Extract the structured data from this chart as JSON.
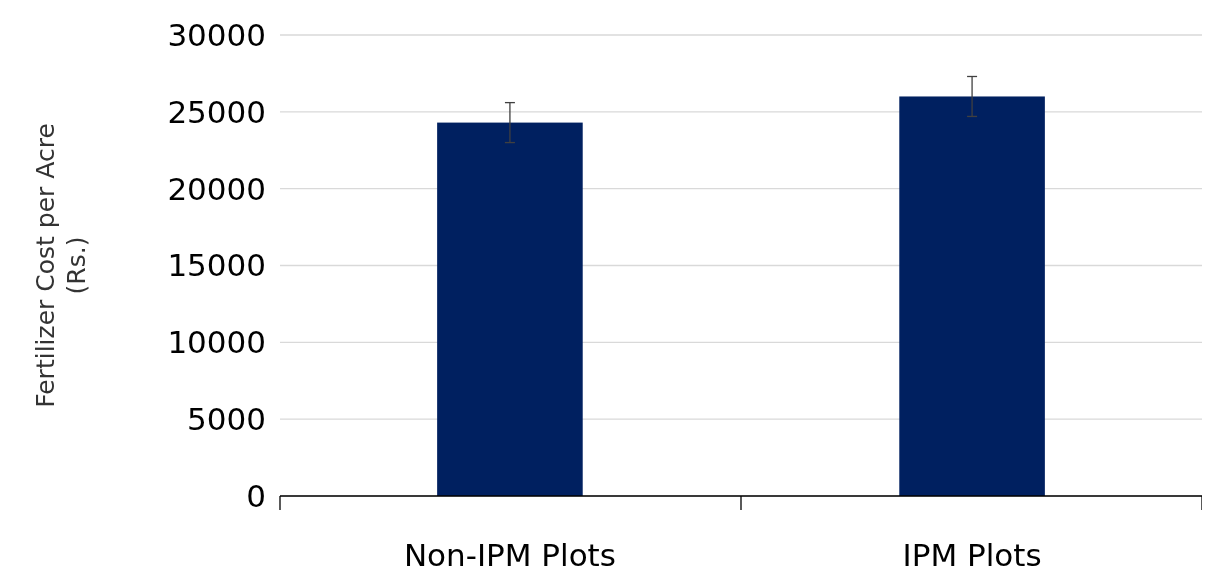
{
  "chart_data": {
    "type": "bar",
    "ylabel": "Fertilizer Cost per Acre (Rs.)",
    "categories": [
      "Non-IPM Plots",
      "IPM Plots"
    ],
    "values": [
      24300,
      26000
    ],
    "errors": [
      1300,
      1300
    ],
    "color": "#002060",
    "ylim": [
      0,
      30000
    ],
    "yticks": [
      0,
      5000,
      10000,
      15000,
      20000,
      25000,
      30000
    ],
    "grid": "y"
  }
}
